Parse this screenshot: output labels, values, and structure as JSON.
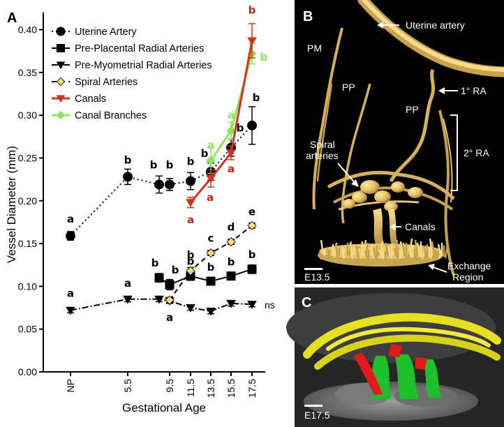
{
  "panels": {
    "a_letter": "A",
    "b_letter": "B",
    "c_letter": "C"
  },
  "chart_data": {
    "type": "line",
    "xlabel": "Gestational Age",
    "ylabel": "Vessel Diameter (mm)",
    "x_tick_labels": [
      "NP",
      "5.5",
      "9.5",
      "11.5",
      "13.5",
      "15.5",
      "17.5"
    ],
    "ylim": [
      0,
      0.42
    ],
    "y_ticks": [
      "0.00",
      "0.05",
      "0.10",
      "0.15",
      "0.20",
      "0.25",
      "0.30",
      "0.35",
      "0.40"
    ],
    "legend_position": "top-left",
    "series": [
      {
        "name": "Uterine Artery",
        "key": "uterine",
        "color": "#000000",
        "dash": "2,4",
        "marker": "circle",
        "points": [
          {
            "x": "NP",
            "y": 0.159,
            "err": 0.005,
            "label": "a"
          },
          {
            "x": "5.5",
            "y": 0.228,
            "err": 0.009,
            "label": "b"
          },
          {
            "x": "9.0",
            "y": 0.219,
            "err": 0.01,
            "label": "b"
          },
          {
            "x": "9.5",
            "y": 0.219,
            "err": 0.007,
            "label": "b"
          },
          {
            "x": "11.5",
            "y": 0.223,
            "err": 0.01,
            "label": "b"
          },
          {
            "x": "13.5",
            "y": 0.234,
            "err": 0.01,
            "label": "b"
          },
          {
            "x": "15.5",
            "y": 0.262,
            "err": 0.01,
            "label": "b"
          },
          {
            "x": "17.5",
            "y": 0.288,
            "err": 0.022,
            "label": "b"
          }
        ]
      },
      {
        "name": "Pre-Placental Radial Arteries",
        "key": "preplacental",
        "color": "#000000",
        "dash": "",
        "marker": "square",
        "points": [
          {
            "x": "9.0",
            "y": 0.11,
            "err": 0.005,
            "label": "b"
          },
          {
            "x": "9.5",
            "y": 0.102,
            "err": 0.006,
            "label": "b"
          },
          {
            "x": "11.5",
            "y": 0.112,
            "err": 0.005,
            "label": "b"
          },
          {
            "x": "13.5",
            "y": 0.106,
            "err": 0.004,
            "label": "b"
          },
          {
            "x": "15.5",
            "y": 0.112,
            "err": 0.004,
            "label": "b"
          },
          {
            "x": "17.5",
            "y": 0.12,
            "err": 0.005,
            "label": "b"
          }
        ]
      },
      {
        "name": "Pre-Myometrial Radial Arteries",
        "key": "premyometrial",
        "color": "#000000",
        "dash": "9,3,2,3",
        "marker": "triangle-down",
        "points": [
          {
            "x": "NP",
            "y": 0.072,
            "err": 0.003,
            "label": "a"
          },
          {
            "x": "5.5",
            "y": 0.085,
            "err": 0.003,
            "label": "a"
          },
          {
            "x": "9.0",
            "y": 0.085,
            "err": 0.003,
            "label": ""
          },
          {
            "x": "9.5",
            "y": 0.083,
            "err": 0.003,
            "label": ""
          },
          {
            "x": "11.5",
            "y": 0.075,
            "err": 0.003,
            "label": ""
          },
          {
            "x": "13.5",
            "y": 0.071,
            "err": 0.003,
            "label": ""
          },
          {
            "x": "15.5",
            "y": 0.08,
            "err": 0.003,
            "label": ""
          },
          {
            "x": "17.5",
            "y": 0.079,
            "err": 0.003,
            "label": ""
          }
        ]
      },
      {
        "name": "Spiral Arteries",
        "key": "spiral",
        "color": "#000000",
        "fill": "#f2df7a",
        "dash": "7,5",
        "marker": "diamond",
        "points": [
          {
            "x": "9.5",
            "y": 0.084,
            "err": 0.003,
            "label": "a"
          },
          {
            "x": "11.5",
            "y": 0.118,
            "err": 0.004,
            "label": "b"
          },
          {
            "x": "13.5",
            "y": 0.139,
            "err": 0.003,
            "label": "c"
          },
          {
            "x": "15.5",
            "y": 0.152,
            "err": 0.003,
            "label": "d"
          },
          {
            "x": "17.5",
            "y": 0.171,
            "err": 0.003,
            "label": "e"
          }
        ]
      },
      {
        "name": "Canals",
        "key": "canals",
        "color": "#d0331f",
        "dash": "",
        "marker": "triangle-down",
        "points": [
          {
            "x": "11.5",
            "y": 0.198,
            "err": 0.006,
            "label": "a"
          },
          {
            "x": "13.5",
            "y": 0.226,
            "err": 0.01,
            "label": "a"
          },
          {
            "x": "15.5",
            "y": 0.256,
            "err": 0.008,
            "label": "a"
          },
          {
            "x": "17.5",
            "y": 0.387,
            "err": 0.02,
            "label": "b"
          }
        ]
      },
      {
        "name": "Canal Branches",
        "key": "branches",
        "color": "#8ee35a",
        "dash": "",
        "marker": "diamond",
        "points": [
          {
            "x": "13.5",
            "y": 0.247,
            "err": 0.015,
            "label": "a"
          },
          {
            "x": "15.5",
            "y": 0.282,
            "err": 0.01,
            "label": "a"
          },
          {
            "x": "17.5",
            "y": 0.372,
            "err": 0.012,
            "label": "b"
          }
        ]
      }
    ],
    "annotations": [
      {
        "text": "ns",
        "x": "17.5",
        "y": 0.079
      }
    ]
  },
  "panel_b": {
    "labels": [
      {
        "key": "uterine",
        "text": "Uterine artery"
      },
      {
        "key": "pm",
        "text": "PM"
      },
      {
        "key": "pp1",
        "text": "PP"
      },
      {
        "key": "ra1",
        "text": "1° RA"
      },
      {
        "key": "pp2",
        "text": "PP"
      },
      {
        "key": "spiral1",
        "text": "Spiral"
      },
      {
        "key": "spiral2",
        "text": "arteries"
      },
      {
        "key": "ra2",
        "text": "2° RA"
      },
      {
        "key": "canals",
        "text": "Canals"
      },
      {
        "key": "exchange1",
        "text": "Exchange"
      },
      {
        "key": "exchange2",
        "text": "Region"
      },
      {
        "key": "stage",
        "text": "E13.5"
      }
    ]
  },
  "panel_c": {
    "stage": "E17.5"
  }
}
